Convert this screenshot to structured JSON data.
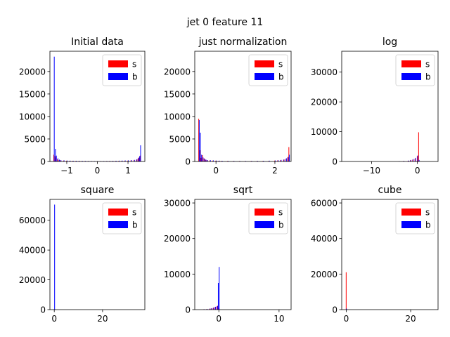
{
  "figure": {
    "suptitle": "jet 0 feature 11",
    "background": "#ffffff",
    "series_colors": {
      "s": "#ff0000",
      "b": "#0000ff"
    }
  },
  "chart_data": [
    {
      "type": "bar",
      "title": "Initial data",
      "xlim": [
        -1.55,
        1.55
      ],
      "ylim": [
        0,
        24500
      ],
      "xticks": [
        -1,
        0,
        1
      ],
      "xtick_labels": [
        "−1",
        "0",
        "1"
      ],
      "yticks": [
        0,
        5000,
        10000,
        15000,
        20000
      ],
      "ytick_labels": [
        "0",
        "5000",
        "10000",
        "15000",
        "20000"
      ],
      "legend": {
        "position": "upper right",
        "entries": [
          "s",
          "b"
        ]
      },
      "bin_width": 0.031,
      "series": [
        {
          "name": "s",
          "color": "#ff0000",
          "x": [
            -1.42,
            -1.38,
            -1.35,
            -1.3,
            -1.25,
            -1.2,
            -1.1,
            -1.0,
            -0.9,
            -0.8,
            -0.7,
            -0.6,
            -0.5,
            -0.4,
            -0.3,
            -0.2,
            -0.1,
            0.0,
            0.1,
            0.2,
            0.3,
            0.4,
            0.5,
            0.6,
            0.7,
            0.8,
            0.9,
            1.0,
            1.1,
            1.2,
            1.28,
            1.33,
            1.37,
            1.4
          ],
          "values": [
            1500,
            1200,
            900,
            500,
            300,
            250,
            200,
            180,
            150,
            140,
            130,
            120,
            110,
            100,
            90,
            80,
            70,
            60,
            70,
            80,
            90,
            100,
            110,
            120,
            130,
            150,
            180,
            200,
            250,
            300,
            400,
            600,
            900,
            1300
          ]
        },
        {
          "name": "b",
          "color": "#0000ff",
          "x": [
            -1.42,
            -1.38,
            -1.35,
            -1.3,
            -1.25,
            -1.2,
            -1.1,
            -1.0,
            -0.9,
            -0.8,
            -0.7,
            -0.6,
            -0.5,
            -0.4,
            -0.3,
            -0.2,
            -0.1,
            0.0,
            0.1,
            0.2,
            0.3,
            0.4,
            0.5,
            0.6,
            0.7,
            0.8,
            0.9,
            1.0,
            1.1,
            1.2,
            1.28,
            1.33,
            1.37,
            1.4
          ],
          "values": [
            23300,
            2800,
            1300,
            700,
            400,
            300,
            250,
            200,
            180,
            160,
            150,
            140,
            130,
            120,
            110,
            100,
            90,
            80,
            90,
            100,
            110,
            120,
            140,
            160,
            180,
            200,
            220,
            250,
            300,
            350,
            500,
            800,
            1200,
            3600
          ]
        }
      ]
    },
    {
      "type": "bar",
      "title": "just normalization",
      "xlim": [
        -0.72,
        2.55
      ],
      "ylim": [
        0,
        24500
      ],
      "xticks": [
        0,
        2
      ],
      "xtick_labels": [
        "0",
        "2"
      ],
      "yticks": [
        0,
        5000,
        10000,
        15000,
        20000
      ],
      "ytick_labels": [
        "0",
        "5000",
        "10000",
        "15000",
        "20000"
      ],
      "legend": {
        "position": "upper right",
        "entries": [
          "s",
          "b"
        ]
      },
      "bin_width": 0.035,
      "series": [
        {
          "name": "s",
          "color": "#ff0000",
          "x": [
            -0.58,
            -0.54,
            -0.5,
            -0.45,
            -0.4,
            -0.35,
            -0.3,
            -0.2,
            -0.1,
            0.0,
            0.1,
            0.2,
            0.4,
            0.6,
            0.8,
            1.0,
            1.2,
            1.4,
            1.6,
            1.8,
            2.0,
            2.1,
            2.2,
            2.3,
            2.38,
            2.44,
            2.48
          ],
          "values": [
            9500,
            2500,
            800,
            1400,
            700,
            400,
            300,
            250,
            200,
            180,
            150,
            130,
            120,
            110,
            100,
            100,
            110,
            120,
            130,
            150,
            200,
            250,
            300,
            400,
            600,
            900,
            3200
          ]
        },
        {
          "name": "b",
          "color": "#0000ff",
          "x": [
            -0.58,
            -0.54,
            -0.5,
            -0.45,
            -0.4,
            -0.35,
            -0.3,
            -0.2,
            -0.1,
            0.0,
            0.1,
            0.2,
            0.4,
            0.6,
            0.8,
            1.0,
            1.2,
            1.4,
            1.6,
            1.8,
            2.0,
            2.1,
            2.2,
            2.3,
            2.38,
            2.44,
            2.48
          ],
          "values": [
            9200,
            6400,
            1500,
            900,
            600,
            400,
            300,
            280,
            240,
            200,
            180,
            150,
            130,
            120,
            110,
            110,
            120,
            130,
            150,
            180,
            220,
            280,
            350,
            450,
            700,
            1000,
            1500
          ]
        }
      ]
    },
    {
      "type": "bar",
      "title": "log",
      "xlim": [
        -16.5,
        4.5
      ],
      "ylim": [
        0,
        37000
      ],
      "xticks": [
        -10,
        0
      ],
      "xtick_labels": [
        "−10",
        "0"
      ],
      "yticks": [
        0,
        10000,
        20000,
        30000
      ],
      "ytick_labels": [
        "0",
        "10000",
        "20000",
        "30000"
      ],
      "legend": {
        "position": "upper right",
        "entries": [
          "s",
          "b"
        ]
      },
      "bin_width": 0.22,
      "series": [
        {
          "name": "s",
          "color": "#ff0000",
          "x": [
            -4.0,
            -3.0,
            -2.0,
            -1.5,
            -1.0,
            -0.5,
            0.0,
            0.3
          ],
          "values": [
            100,
            150,
            250,
            400,
            600,
            900,
            1800,
            9800
          ]
        },
        {
          "name": "b",
          "color": "#0000ff",
          "x": [
            -4.0,
            -3.0,
            -2.0,
            -1.5,
            -1.0,
            -0.5,
            0.0,
            0.3
          ],
          "values": [
            120,
            180,
            300,
            500,
            800,
            1200,
            2000,
            500
          ]
        }
      ]
    },
    {
      "type": "bar",
      "title": "square",
      "xlim": [
        -1.8,
        37.5
      ],
      "ylim": [
        0,
        74000
      ],
      "xticks": [
        0,
        20
      ],
      "xtick_labels": [
        "0",
        "20"
      ],
      "yticks": [
        0,
        20000,
        40000,
        60000
      ],
      "ytick_labels": [
        "0",
        "20000",
        "40000",
        "60000"
      ],
      "legend": {
        "position": "upper right",
        "entries": [
          "s",
          "b"
        ]
      },
      "bin_width": 0.2,
      "series": [
        {
          "name": "s",
          "color": "#ff0000",
          "x": [
            0.0,
            0.5
          ],
          "values": [
            200,
            50
          ]
        },
        {
          "name": "b",
          "color": "#0000ff",
          "x": [
            0.0,
            0.5
          ],
          "values": [
            70500,
            100
          ]
        }
      ]
    },
    {
      "type": "bar",
      "title": "sqrt",
      "xlim": [
        -4.0,
        12.0
      ],
      "ylim": [
        0,
        31000
      ],
      "xticks": [
        0,
        10
      ],
      "xtick_labels": [
        "0",
        "10"
      ],
      "yticks": [
        0,
        10000,
        20000,
        30000
      ],
      "ytick_labels": [
        "0",
        "10000",
        "20000",
        "30000"
      ],
      "legend": {
        "position": "upper right",
        "entries": [
          "s",
          "b"
        ]
      },
      "bin_width": 0.16,
      "series": [
        {
          "name": "s",
          "color": "#ff0000",
          "x": [
            -2.5,
            -2.0,
            -1.5,
            -1.2,
            -0.9,
            -0.6,
            -0.3,
            -0.15,
            0.0
          ],
          "values": [
            100,
            150,
            250,
            350,
            500,
            700,
            900,
            1100,
            400
          ]
        },
        {
          "name": "b",
          "color": "#0000ff",
          "x": [
            -2.5,
            -2.0,
            -1.5,
            -1.2,
            -0.9,
            -0.6,
            -0.3,
            -0.15,
            0.0
          ],
          "values": [
            120,
            180,
            300,
            400,
            600,
            800,
            1000,
            7500,
            12000
          ]
        }
      ]
    },
    {
      "type": "bar",
      "title": "cube",
      "xlim": [
        -1.4,
        28.5
      ],
      "ylim": [
        0,
        62000
      ],
      "xticks": [
        0,
        20
      ],
      "xtick_labels": [
        "0",
        "20"
      ],
      "yticks": [
        0,
        20000,
        40000,
        60000
      ],
      "ytick_labels": [
        "0",
        "20000",
        "40000",
        "60000"
      ],
      "legend": {
        "position": "upper right",
        "entries": [
          "s",
          "b"
        ]
      },
      "bin_width": 0.15,
      "series": [
        {
          "name": "s",
          "color": "#ff0000",
          "x": [
            -0.05,
            0.4
          ],
          "values": [
            21000,
            80
          ]
        },
        {
          "name": "b",
          "color": "#0000ff",
          "x": [
            -0.05,
            0.4
          ],
          "values": [
            600,
            50
          ]
        }
      ]
    }
  ]
}
